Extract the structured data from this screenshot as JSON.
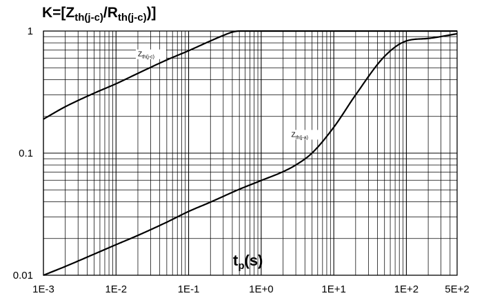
{
  "chart_data": {
    "type": "line",
    "title": {
      "main": "K=[Z",
      "sub1": "th(j-c)",
      "mid": "/R",
      "sub2": "th(j-c)",
      "end": ")]"
    },
    "title_text": "K=[Zth(j-c)/Rth(j-c)]",
    "xlabel": {
      "main": "t",
      "sub": "p",
      "rest": "(s)"
    },
    "xlabel_text": "tp(s)",
    "x_scale": "log",
    "y_scale": "log",
    "xlim": [
      0.001,
      500
    ],
    "ylim": [
      0.01,
      1
    ],
    "grid": true,
    "x_ticks": [
      {
        "value": 0.001,
        "label": "1E-3"
      },
      {
        "value": 0.01,
        "label": "1E-2"
      },
      {
        "value": 0.1,
        "label": "1E-1"
      },
      {
        "value": 1,
        "label": "1E+0"
      },
      {
        "value": 10,
        "label": "1E+1"
      },
      {
        "value": 100,
        "label": "1E+2"
      },
      {
        "value": 500,
        "label": "5E+2"
      }
    ],
    "y_ticks": [
      {
        "value": 1,
        "label": "1"
      },
      {
        "value": 0.1,
        "label": "0.1"
      },
      {
        "value": 0.01,
        "label": "0.01"
      }
    ],
    "series": [
      {
        "name": "Zth(j-c)",
        "label": {
          "main": "Z",
          "sub": "th(j-c)"
        },
        "color": "#000000",
        "x": [
          0.001,
          0.002,
          0.005,
          0.01,
          0.02,
          0.05,
          0.1,
          0.2,
          0.3,
          0.4,
          0.5,
          1,
          10,
          100,
          500
        ],
        "y": [
          0.19,
          0.24,
          0.31,
          0.37,
          0.45,
          0.58,
          0.69,
          0.83,
          0.92,
          0.98,
          1.0,
          1.0,
          1.0,
          1.0,
          1.0
        ]
      },
      {
        "name": "Zth(j-a)",
        "label": {
          "main": "Z",
          "sub": "th(j-a)"
        },
        "color": "#000000",
        "x": [
          0.001,
          0.002,
          0.005,
          0.01,
          0.02,
          0.05,
          0.1,
          0.2,
          0.5,
          1,
          2,
          3,
          5,
          10,
          20,
          50,
          100,
          200,
          500
        ],
        "y": [
          0.01,
          0.0118,
          0.0149,
          0.0178,
          0.0212,
          0.0272,
          0.0333,
          0.0397,
          0.0506,
          0.0597,
          0.0705,
          0.08,
          0.1,
          0.163,
          0.3,
          0.62,
          0.83,
          0.87,
          0.95
        ]
      }
    ]
  }
}
